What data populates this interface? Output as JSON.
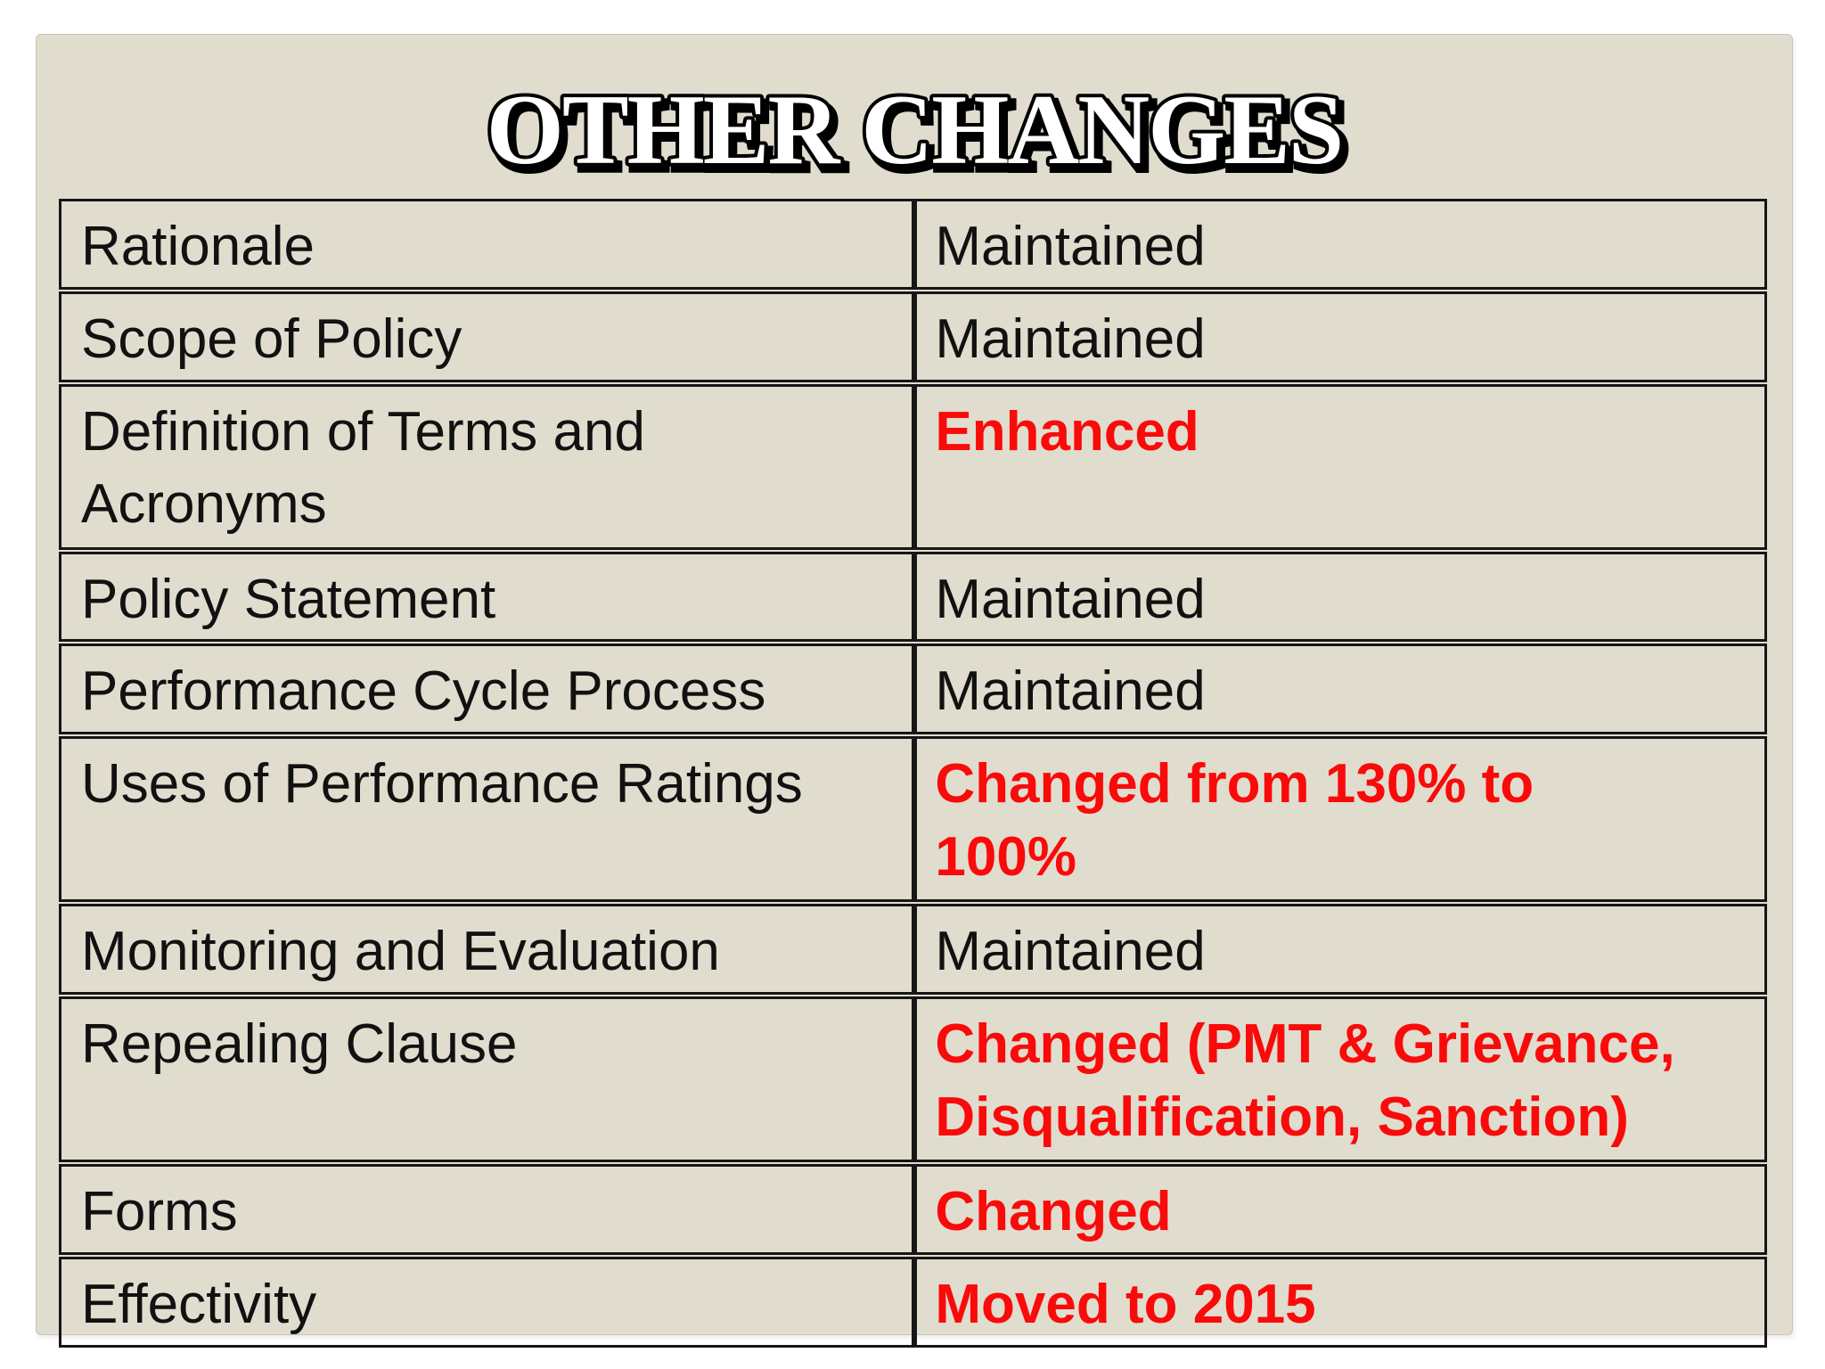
{
  "title": "OTHER CHANGES",
  "colors": {
    "page-bg": "#ffffff",
    "slide-bg": "#e0ddcf",
    "slide-edge": "#c9c6b8",
    "border-black": "#161616",
    "text-black": "#111111",
    "accent-red": "#fa0a0a",
    "title-fill": "#ffffff",
    "title-outline": "#000000"
  },
  "table": {
    "rows": [
      {
        "label": "Rationale",
        "status": "Maintained",
        "emphasis": "normal"
      },
      {
        "label": "Scope of Policy",
        "status": "Maintained",
        "emphasis": "normal"
      },
      {
        "label": "Definition of Terms and\nAcronyms",
        "status": "Enhanced",
        "emphasis": "changed"
      },
      {
        "label": "Policy Statement",
        "status": "Maintained",
        "emphasis": "normal"
      },
      {
        "label": "Performance Cycle Process",
        "status": "Maintained",
        "emphasis": "normal"
      },
      {
        "label": "Uses of Performance Ratings",
        "status": "Changed from 130% to\n100%",
        "emphasis": "changed"
      },
      {
        "label": "Monitoring and Evaluation",
        "status": "Maintained",
        "emphasis": "normal"
      },
      {
        "label": "Repealing Clause",
        "status": "Changed (PMT & Grievance,\nDisqualification, Sanction)",
        "emphasis": "changed"
      },
      {
        "label": "Forms",
        "status": "Changed",
        "emphasis": "changed"
      },
      {
        "label": "Effectivity",
        "status": "Moved to 2015",
        "emphasis": "changed"
      }
    ]
  }
}
